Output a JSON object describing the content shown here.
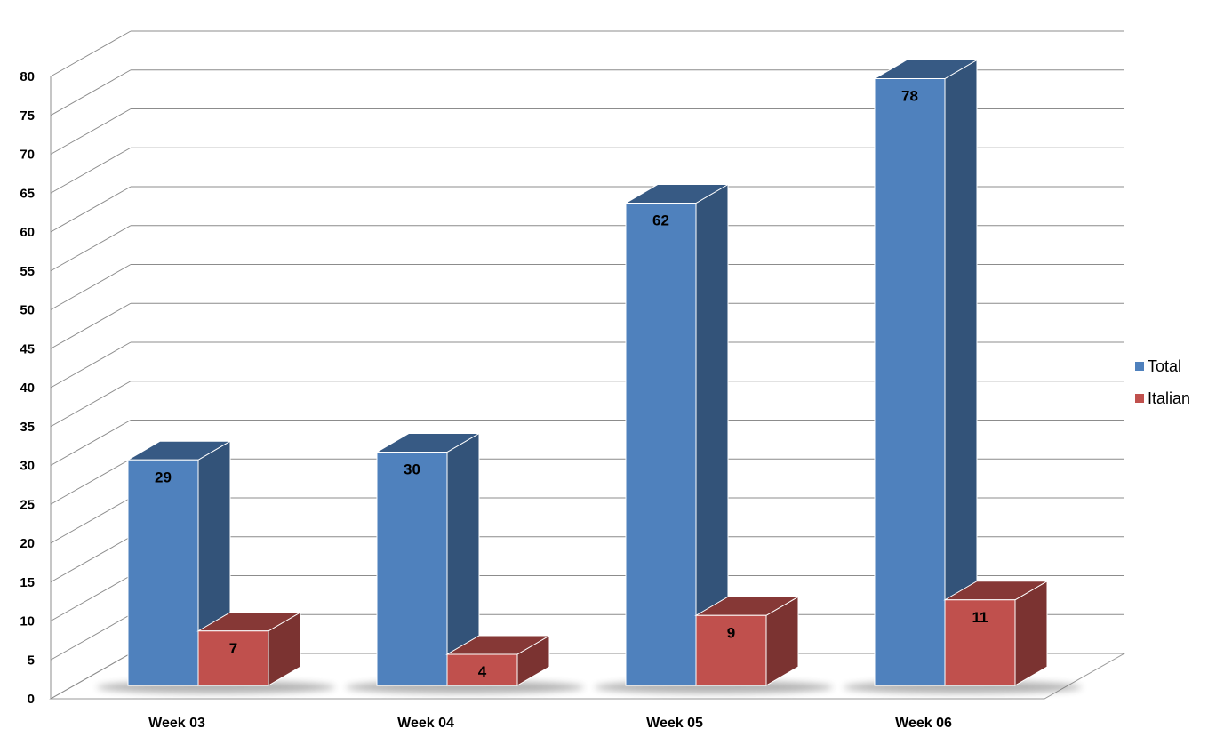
{
  "chart_data": {
    "type": "bar",
    "style": "3d-clustered-column",
    "categories": [
      "Week 03",
      "Week 04",
      "Week 05",
      "Week 06"
    ],
    "series": [
      {
        "name": "Total",
        "values": [
          29,
          30,
          62,
          78
        ],
        "color": "#4F81BD"
      },
      {
        "name": "Italian",
        "values": [
          7,
          4,
          9,
          11
        ],
        "color": "#C0504D"
      }
    ],
    "ylim": [
      0,
      80
    ],
    "yticks": [
      0,
      5,
      10,
      15,
      20,
      25,
      30,
      35,
      40,
      45,
      50,
      55,
      60,
      65,
      70,
      75,
      80
    ],
    "title": "",
    "xlabel": "",
    "ylabel": "",
    "grid": true,
    "legend_position": "right",
    "data_labels": true
  }
}
